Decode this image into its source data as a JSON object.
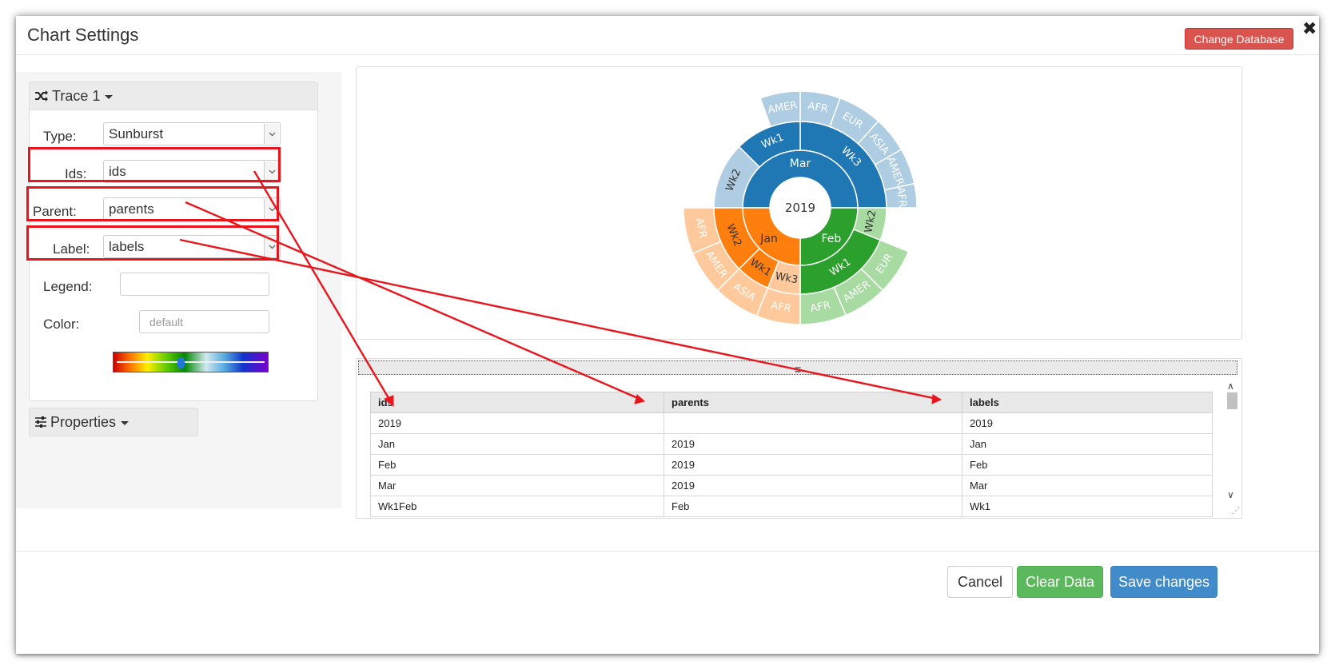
{
  "dialog": {
    "title": "Chart Settings",
    "change_db_label": "Change Database",
    "close_icon": "close-icon"
  },
  "trace": {
    "header_label": "Trace 1",
    "fields": {
      "type": {
        "label": "Type:",
        "value": "Sunburst"
      },
      "ids": {
        "label": "Ids:",
        "value": "ids"
      },
      "parent": {
        "label": "Parent:",
        "value": "parents"
      },
      "label": {
        "label": "Label:",
        "value": "labels"
      },
      "legend": {
        "label": "Legend:",
        "value": ""
      },
      "color": {
        "label": "Color:",
        "placeholder": "default"
      }
    }
  },
  "properties": {
    "label": "Properties"
  },
  "sunburst": {
    "center": "2019",
    "months": [
      {
        "label": "Mar",
        "color": "#1f77b4"
      },
      {
        "label": "Feb",
        "color": "#2ca02c"
      },
      {
        "label": "Jan",
        "color": "#ff7f0e"
      }
    ],
    "weeks": [
      {
        "label": "Wk3",
        "month": "Mar"
      },
      {
        "label": "Wk1",
        "month": "Mar"
      },
      {
        "label": "Wk2",
        "month": "Mar"
      },
      {
        "label": "Wk2",
        "month": "Feb"
      },
      {
        "label": "Wk1",
        "month": "Feb"
      },
      {
        "label": "Wk3",
        "month": "Jan"
      },
      {
        "label": "Wk1",
        "month": "Jan"
      },
      {
        "label": "Wk2",
        "month": "Jan"
      }
    ],
    "regions": [
      {
        "label": "AFR",
        "month": "Mar"
      },
      {
        "label": "AMER",
        "month": "Mar"
      },
      {
        "label": "ASIA",
        "month": "Mar"
      },
      {
        "label": "EUR",
        "month": "Mar"
      },
      {
        "label": "AFR",
        "month": "Mar"
      },
      {
        "label": "AMER",
        "month": "Mar"
      },
      {
        "label": "EUR",
        "month": "Feb"
      },
      {
        "label": "AMER",
        "month": "Feb"
      },
      {
        "label": "AFR",
        "month": "Feb"
      },
      {
        "label": "AFR",
        "month": "Jan"
      },
      {
        "label": "ASIA",
        "month": "Jan"
      },
      {
        "label": "AMER",
        "month": "Jan"
      },
      {
        "label": "AFR",
        "month": "Jan"
      }
    ]
  },
  "table": {
    "columns": [
      "ids",
      "parents",
      "labels"
    ],
    "rows": [
      [
        "2019",
        "",
        "2019"
      ],
      [
        "Jan",
        "2019",
        "Jan"
      ],
      [
        "Feb",
        "2019",
        "Feb"
      ],
      [
        "Mar",
        "2019",
        "Mar"
      ],
      [
        "Wk1Feb",
        "Feb",
        "Wk1"
      ]
    ]
  },
  "footer": {
    "cancel_label": "Cancel",
    "clear_label": "Clear Data",
    "save_label": "Save changes"
  },
  "colors": {
    "danger": "#d9534f",
    "success": "#5cb85c",
    "primary": "#428bca",
    "annotation": "#e8161c"
  }
}
